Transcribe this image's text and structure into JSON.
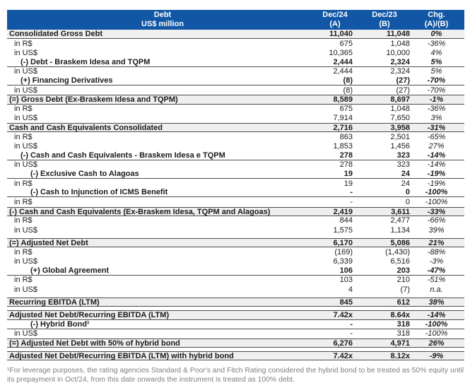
{
  "header": {
    "col_label_line1": "Debt",
    "col_label_line2": "US$ million",
    "col_a_line1": "Dec/24",
    "col_a_line2": "(A)",
    "col_b_line1": "Dec/23",
    "col_b_line2": "(B)",
    "col_chg_line1": "Chg.",
    "col_chg_line2": "(A)/(B)"
  },
  "colors": {
    "header_bg": "#1157A5",
    "header_text": "#FFFFFF",
    "section_bg": "#EFEFEF",
    "border": "#4D4D4D",
    "text": "#1A1A1A",
    "footnote_text": "#7F7F7F"
  },
  "rows": [
    {
      "label": "Consolidated Gross Debt",
      "dec24": "11,040",
      "dec23": "11,048",
      "chg": "0%",
      "style": "section",
      "indent": 0
    },
    {
      "label": "in R$",
      "dec24": "675",
      "dec23": "1,048",
      "chg": "-36%",
      "style": "detail",
      "indent": 1
    },
    {
      "label": "in US$",
      "dec24": "10,365",
      "dec23": "10,000",
      "chg": "4%",
      "style": "detail",
      "indent": 1
    },
    {
      "label": "(-) Debt - Braskem Idesa and TQPM",
      "dec24": "2,444",
      "dec23": "2,324",
      "chg": "5%",
      "style": "sub",
      "indent": 2
    },
    {
      "label": "in US$",
      "dec24": "2,444",
      "dec23": "2,324",
      "chg": "5%",
      "style": "detail",
      "indent": 1
    },
    {
      "label": "(+) Financing Derivatives",
      "dec24": "(8)",
      "dec23": "(27)",
      "chg": "-70%",
      "style": "sub",
      "indent": 2
    },
    {
      "label": "in US$",
      "dec24": "(8)",
      "dec23": "(27)",
      "chg": "-70%",
      "style": "detail",
      "indent": 1
    },
    {
      "label": "(=) Gross Debt (Ex-Braskem Idesa and TQPM)",
      "dec24": "8,589",
      "dec23": "8,697",
      "chg": "-1%",
      "style": "section",
      "indent": 0
    },
    {
      "label": "in R$",
      "dec24": "675",
      "dec23": "1,048",
      "chg": "-36%",
      "style": "detail",
      "indent": 1
    },
    {
      "label": "in US$",
      "dec24": "7,914",
      "dec23": "7,650",
      "chg": "3%",
      "style": "detail",
      "indent": 1
    },
    {
      "label": "Cash and Cash Equivalents Consolidated",
      "dec24": "2,716",
      "dec23": "3,958",
      "chg": "-31%",
      "style": "section",
      "indent": 0
    },
    {
      "label": "in R$",
      "dec24": "863",
      "dec23": "2,501",
      "chg": "-65%",
      "style": "detail",
      "indent": 1
    },
    {
      "label": "in US$",
      "dec24": "1,853",
      "dec23": "1,456",
      "chg": "27%",
      "style": "detail",
      "indent": 1
    },
    {
      "label": "(-) Cash and Cash Equivalents - Braskem Idesa e TQPM",
      "dec24": "278",
      "dec23": "323",
      "chg": "-14%",
      "style": "sub",
      "indent": 2
    },
    {
      "label": "in US$",
      "dec24": "278",
      "dec23": "323",
      "chg": "-14%",
      "style": "detail",
      "indent": 1
    },
    {
      "label": "(-) Exclusive Cash to Alagoas",
      "dec24": "19",
      "dec23": "24",
      "chg": "-19%",
      "style": "sub",
      "indent": 3
    },
    {
      "label": "in R$",
      "dec24": "19",
      "dec23": "24",
      "chg": "-19%",
      "style": "detail",
      "indent": 1
    },
    {
      "label": "(-) Cash to Injunction of ICMS Benefit",
      "dec24": "-",
      "dec23": "0",
      "chg": "-100%",
      "style": "sub",
      "indent": 3
    },
    {
      "label": "in R$",
      "dec24": "-",
      "dec23": "0",
      "chg": "-100%",
      "style": "detail",
      "indent": 1
    },
    {
      "label": "(-) Cash and Cash Equivalents (Ex-Braskem Idesa, TQPM and Alagoas)",
      "dec24": "2,419",
      "dec23": "3,611",
      "chg": "-33%",
      "style": "section",
      "indent": 0
    },
    {
      "label": "in R$",
      "dec24": "844",
      "dec23": "2,477",
      "chg": "-66%",
      "style": "detail",
      "indent": 1
    },
    {
      "label": "in US$",
      "dec24": "1,575",
      "dec23": "1,134",
      "chg": "39%",
      "style": "detail",
      "indent": 1
    },
    {
      "label": "(=) Adjusted Net Debt",
      "dec24": "6,170",
      "dec23": "5,086",
      "chg": "21%",
      "style": "section",
      "indent": 0,
      "gap_before": true
    },
    {
      "label": "in R$",
      "dec24": "(169)",
      "dec23": "(1,430)",
      "chg": "-88%",
      "style": "detail",
      "indent": 1
    },
    {
      "label": "in US$",
      "dec24": "6,339",
      "dec23": "6,516",
      "chg": "-3%",
      "style": "detail",
      "indent": 1
    },
    {
      "label": "(+) Global Agreement",
      "dec24": "106",
      "dec23": "203",
      "chg": "-47%",
      "style": "sub",
      "indent": 3
    },
    {
      "label": "in R$",
      "dec24": "103",
      "dec23": "210",
      "chg": "-51%",
      "style": "detail",
      "indent": 1
    },
    {
      "label": "in US$",
      "dec24": "4",
      "dec23": "(7)",
      "chg": "n.a.",
      "style": "detail",
      "indent": 1
    },
    {
      "label": "Recurring EBITDA (LTM)",
      "dec24": "845",
      "dec23": "612",
      "chg": "38%",
      "style": "section",
      "indent": 0,
      "gap_before": true
    },
    {
      "label": "Adjusted Net Debt/Recurring EBITDA (LTM)",
      "dec24": "7.42x",
      "dec23": "8.64x",
      "chg": "-14%",
      "style": "section",
      "indent": 0,
      "gap_before": true
    },
    {
      "label": "(-) Hybrid Bond¹",
      "dec24": "-",
      "dec23": "318",
      "chg": "-100%",
      "style": "sub",
      "indent": 3
    },
    {
      "label": "in US$",
      "dec24": "-",
      "dec23": "318",
      "chg": "-100%",
      "style": "detail",
      "indent": 1
    },
    {
      "label": "(=) Adjusted Net Debt with 50% of hybrid bond",
      "dec24": "6,276",
      "dec23": "4,971",
      "chg": "26%",
      "style": "section",
      "indent": 0
    },
    {
      "label": "Adjusted Net Debt/Recurring EBITDA (LTM) with hybrid bond",
      "dec24": "7.42x",
      "dec23": "8.12x",
      "chg": "-9%",
      "style": "section",
      "indent": 0,
      "gap_before": true
    }
  ],
  "footnote": "¹For leverage purposes, the rating agencies Standard & Poor's and Fitch Rating considered the hybrid bond to be treated as 50% equity until its prepayment in Oct/24, from this date onwards the instrument is treated as 100% debt."
}
